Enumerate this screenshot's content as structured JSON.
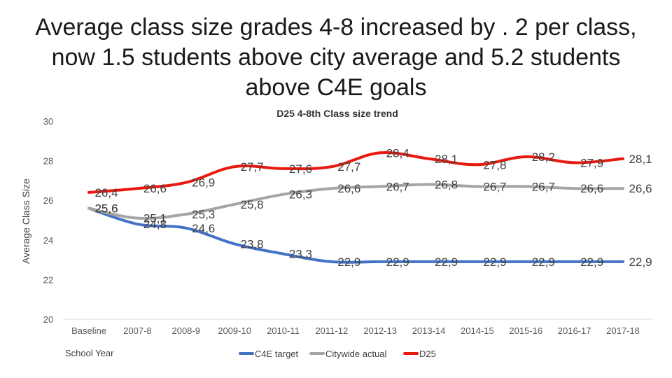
{
  "slide": {
    "title": "Average class size grades 4-8 increased by . 2 per class, now 1.5 students above city average and 5.2 students above C4E goals"
  },
  "chart_data": {
    "type": "line",
    "title": "D25 4-8th Class size trend",
    "xlabel": "School Year",
    "ylabel": "Average Class Size",
    "ylim": [
      20,
      30
    ],
    "yticks": [
      20,
      22,
      24,
      26,
      28,
      30
    ],
    "ytick_labels": [
      "20",
      "22",
      "24",
      "26",
      "28",
      "30"
    ],
    "categories": [
      "Baseline",
      "2007-8",
      "2008-9",
      "2009-10",
      "2010-11",
      "2011-12",
      "2012-13",
      "2013-14",
      "2014-15",
      "2015-16",
      "2016-17",
      "2017-18"
    ],
    "series": [
      {
        "name": "C4E target",
        "color": "#4472c4",
        "values": [
          25.6,
          24.8,
          24.6,
          23.8,
          23.3,
          22.9,
          22.9,
          22.9,
          22.9,
          22.9,
          22.9,
          22.9
        ],
        "labels": [
          "25,6",
          "24,8",
          "24,6",
          "23,8",
          "23,3",
          "22,9",
          "22,9",
          "22,9",
          "22,9",
          "22,9",
          "22,9",
          "22,9"
        ]
      },
      {
        "name": "Citywide actual",
        "color": "#a5a5a5",
        "values": [
          25.6,
          25.1,
          25.3,
          25.8,
          26.3,
          26.6,
          26.7,
          26.8,
          26.7,
          26.7,
          26.6,
          26.6
        ],
        "labels": [
          "25,6",
          "25,1",
          "25,3",
          "25,8",
          "26,3",
          "26,6",
          "26,7",
          "26,8",
          "26,7",
          "26,7",
          "26,6",
          "26,6"
        ]
      },
      {
        "name": "D25",
        "color": "#e8190f",
        "values": [
          26.4,
          26.6,
          26.9,
          27.7,
          27.6,
          27.7,
          28.4,
          28.1,
          27.8,
          28.2,
          27.9,
          28.1
        ],
        "labels": [
          "26,4",
          "26,6",
          "26,9",
          "27,7",
          "27,6",
          "27,7",
          "28,4",
          "28,1",
          "27,8",
          "28,2",
          "27,9",
          "28,1"
        ]
      }
    ],
    "legend": "bottom"
  }
}
